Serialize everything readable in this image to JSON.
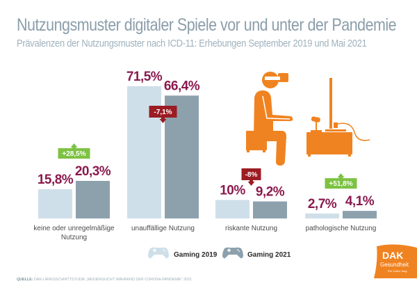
{
  "header": {
    "title": "Nutzungsmuster digitaler Spiele vor und unter der Pandemie",
    "subtitle": "Prävalenzen der Nutzungsmuster nach ICD-11: Erhebungen September 2019 und Mai 2021"
  },
  "chart_data": {
    "type": "bar",
    "title": "Nutzungsmuster digitaler Spiele vor und unter der Pandemie",
    "subtitle": "Prävalenzen der Nutzungsmuster nach ICD-11: Erhebungen September 2019 und Mai 2021",
    "xlabel": "",
    "ylabel": "",
    "ylim": [
      0,
      75
    ],
    "grid": false,
    "legend_position": "bottom-center",
    "categories": [
      "keine oder unregelmäßige Nutzung",
      "unauffällige Nutzung",
      "riskante Nutzung",
      "pathologische Nutzung"
    ],
    "category_lines": [
      [
        "keine oder unregelmäßige",
        "Nutzung"
      ],
      [
        "unauffällige Nutzung"
      ],
      [
        "riskante Nutzung"
      ],
      [
        "pathologische Nutzung"
      ]
    ],
    "series": [
      {
        "name": "Gaming 2019",
        "color": "#cfdfea",
        "values": [
          15.8,
          71.5,
          10.0,
          2.7
        ],
        "labels": [
          "15,8%",
          "71,5%",
          "10%",
          "2,7%"
        ]
      },
      {
        "name": "Gaming 2021",
        "color": "#8da1ad",
        "values": [
          20.3,
          66.4,
          9.2,
          4.1
        ],
        "labels": [
          "20,3%",
          "66,4%",
          "9,2%",
          "4,1%"
        ]
      }
    ],
    "changes": [
      {
        "label": "+28,5%",
        "direction": "up",
        "color": "#7dc242"
      },
      {
        "label": "-7,1%",
        "direction": "down",
        "color": "#9b1c22"
      },
      {
        "label": "-8%",
        "direction": "down",
        "color": "#9b1c22"
      },
      {
        "label": "+51,8%",
        "direction": "up",
        "color": "#7dc242"
      }
    ],
    "value_label_color": "#8a1a4e"
  },
  "illustration": {
    "icon": "person-vr-gaming-icon",
    "color": "#f08321"
  },
  "legend": [
    {
      "label": "Gaming 2019",
      "icon": "gamepad-icon",
      "color": "#cfdfea"
    },
    {
      "label": "Gaming 2021",
      "icon": "gamepad-icon",
      "color": "#8da1ad"
    }
  ],
  "source": {
    "prefix": "QUELLE:",
    "text": "DAK-LÄNGSSCHNITTSTUDIE „MEDIENSUCHT WÄHREND DER CORONA-PANDEMIE“ 2021"
  },
  "logo": {
    "brand": "DAK",
    "name": "Gesundheit",
    "tagline": "Ein Leben lang.",
    "color": "#f08321"
  }
}
